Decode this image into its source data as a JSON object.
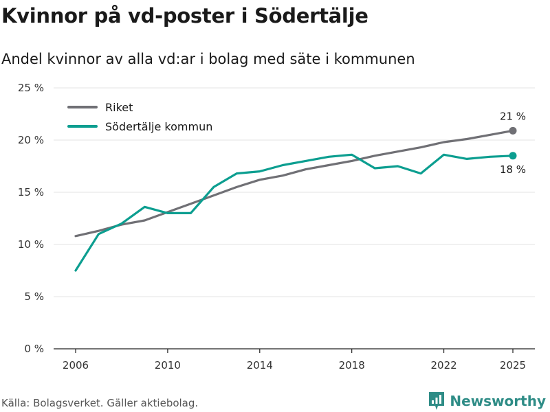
{
  "colors": {
    "riket": "#707075",
    "sodertalje": "#0c9e90",
    "brand": "#2e8c86"
  },
  "footer": {
    "source": "Källa: Bolagsverket. Gäller aktiebolag.",
    "brand": "Newsworthy"
  },
  "chart_data": {
    "type": "line",
    "title": "Kvinnor på vd-poster i Södertälje",
    "subtitle": "Andel kvinnor av alla vd:ar i bolag med säte i kommunen",
    "xlabel": "",
    "ylabel": "",
    "ylim": [
      0,
      25
    ],
    "xlim": [
      2006,
      2025
    ],
    "yticks": [
      0,
      5,
      10,
      15,
      20,
      25
    ],
    "ytick_labels": [
      "0 %",
      "5 %",
      "10 %",
      "15 %",
      "20 %",
      "25 %"
    ],
    "xticks": [
      2006,
      2010,
      2014,
      2018,
      2022,
      2025
    ],
    "xtick_labels": [
      "2006",
      "2010",
      "2014",
      "2018",
      "2022",
      "2025"
    ],
    "grid": true,
    "legend_position": "top-left",
    "x": [
      2006,
      2007,
      2008,
      2009,
      2010,
      2011,
      2012,
      2013,
      2014,
      2015,
      2016,
      2017,
      2018,
      2019,
      2020,
      2021,
      2022,
      2023,
      2024,
      2025
    ],
    "series": [
      {
        "name": "Riket",
        "color": "#707075",
        "values": [
          10.8,
          11.3,
          11.9,
          12.3,
          13.1,
          13.9,
          14.7,
          15.5,
          16.2,
          16.6,
          17.2,
          17.6,
          18.0,
          18.5,
          18.9,
          19.3,
          19.8,
          20.1,
          20.5,
          20.9
        ],
        "end_label": "21 %"
      },
      {
        "name": "Södertälje kommun",
        "color": "#0c9e90",
        "values": [
          7.5,
          11.0,
          12.0,
          13.6,
          13.0,
          13.0,
          15.5,
          16.8,
          17.0,
          17.6,
          18.0,
          18.4,
          18.6,
          17.3,
          17.5,
          16.8,
          18.6,
          18.2,
          18.4,
          18.5
        ],
        "end_label": "18 %"
      }
    ]
  }
}
